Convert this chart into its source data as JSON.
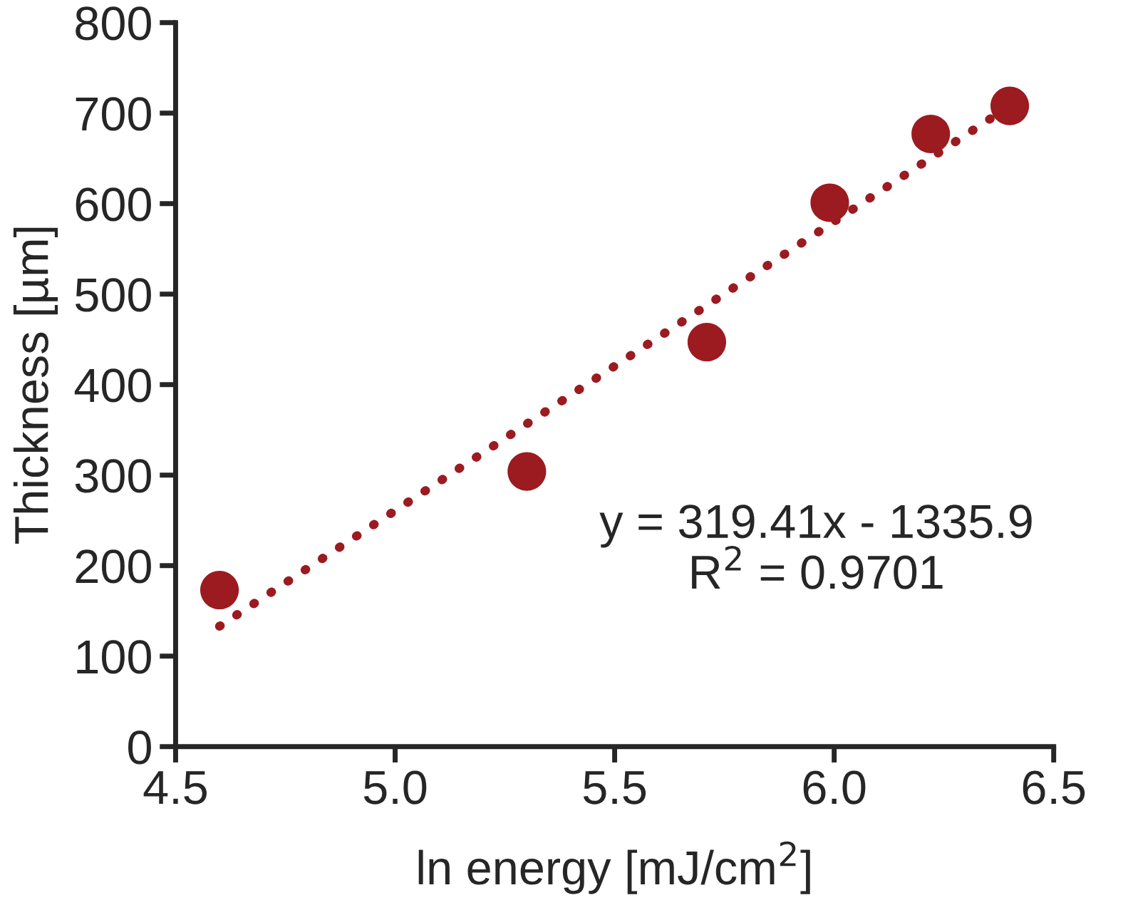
{
  "chart_data": {
    "type": "scatter",
    "xlabel": "ln energy [mJ/cm$^{2}$]",
    "ylabel": "Thickness [µm]",
    "xlim": [
      4.5,
      6.5
    ],
    "xticks": [
      {
        "value": 4.5,
        "label": "4.5"
      },
      {
        "value": 5.0,
        "label": "5.0"
      },
      {
        "value": 5.5,
        "label": "5.5"
      },
      {
        "value": 6.0,
        "label": "6.0"
      },
      {
        "value": 6.5,
        "label": "6.5"
      }
    ],
    "ylim": [
      0,
      800
    ],
    "yticks": [
      0,
      100,
      200,
      300,
      400,
      500,
      600,
      700,
      800
    ],
    "grid": false,
    "legend": false,
    "series": [
      {
        "marker": "circle",
        "color": "#9b1b20",
        "x": [
          4.6,
          5.3,
          5.71,
          5.99,
          6.22,
          6.4
        ],
        "values": [
          173,
          304,
          447,
          601,
          677,
          708
        ]
      },
      {
        "type": "line",
        "color": "#9b1b20",
        "line_style": "dotted",
        "x": [
          4.6,
          6.4
        ],
        "values": [
          133,
          708
        ]
      }
    ],
    "annotations": [
      "y = 319.41x - 1335.9\nR$^{2}$ = 0.9701"
    ]
  }
}
